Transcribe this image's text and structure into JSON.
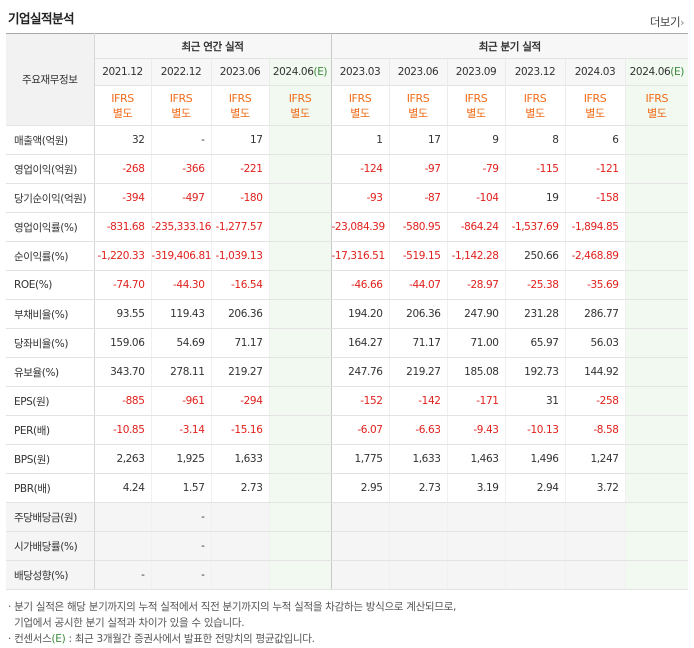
{
  "section_title": "기업실적분석",
  "more_label": "더보기",
  "more_icon": "chevron-right-icon",
  "row_header": "주요재무정보",
  "annual_group_label": "최근 연간 실적",
  "quarter_group_label": "최근 분기 실적",
  "annual_periods": [
    {
      "label": "2021.12",
      "suffix": "",
      "estimate": false
    },
    {
      "label": "2022.12",
      "suffix": "",
      "estimate": false
    },
    {
      "label": "2023.06",
      "suffix": "",
      "estimate": false
    },
    {
      "label": "2024.06",
      "suffix": "(E)",
      "estimate": true
    }
  ],
  "quarter_periods": [
    {
      "label": "2023.03",
      "suffix": "",
      "estimate": false
    },
    {
      "label": "2023.06",
      "suffix": "",
      "estimate": false
    },
    {
      "label": "2023.09",
      "suffix": "",
      "estimate": false
    },
    {
      "label": "2023.12",
      "suffix": "",
      "estimate": false
    },
    {
      "label": "2024.03",
      "suffix": "",
      "estimate": false
    },
    {
      "label": "2024.06",
      "suffix": "(E)",
      "estimate": true
    }
  ],
  "ifrs_line1": "IFRS",
  "ifrs_line2": "별도",
  "rows": [
    {
      "label": "매출액(억원)",
      "grey": false,
      "sep": false,
      "annual": [
        "32",
        "-",
        "17",
        ""
      ],
      "quarter": [
        "1",
        "17",
        "9",
        "8",
        "6",
        ""
      ]
    },
    {
      "label": "영업이익(억원)",
      "grey": false,
      "sep": false,
      "annual": [
        "-268",
        "-366",
        "-221",
        ""
      ],
      "quarter": [
        "-124",
        "-97",
        "-79",
        "-115",
        "-121",
        ""
      ]
    },
    {
      "label": "당기순이익(억원)",
      "grey": false,
      "sep": false,
      "annual": [
        "-394",
        "-497",
        "-180",
        ""
      ],
      "quarter": [
        "-93",
        "-87",
        "-104",
        "19",
        "-158",
        ""
      ]
    },
    {
      "label": "영업이익률(%)",
      "grey": false,
      "sep": true,
      "annual": [
        "-831.68",
        "-235,333.16",
        "-1,277.57",
        ""
      ],
      "quarter": [
        "-23,084.39",
        "-580.95",
        "-864.24",
        "-1,537.69",
        "-1,894.85",
        ""
      ]
    },
    {
      "label": "순이익률(%)",
      "grey": false,
      "sep": false,
      "annual": [
        "-1,220.33",
        "-319,406.81",
        "-1,039.13",
        ""
      ],
      "quarter": [
        "-17,316.51",
        "-519.15",
        "-1,142.28",
        "250.66",
        "-2,468.89",
        ""
      ]
    },
    {
      "label": "ROE(%)",
      "grey": false,
      "sep": false,
      "annual": [
        "-74.70",
        "-44.30",
        "-16.54",
        ""
      ],
      "quarter": [
        "-46.66",
        "-44.07",
        "-28.97",
        "-25.38",
        "-35.69",
        ""
      ]
    },
    {
      "label": "부채비율(%)",
      "grey": false,
      "sep": true,
      "annual": [
        "93.55",
        "119.43",
        "206.36",
        ""
      ],
      "quarter": [
        "194.20",
        "206.36",
        "247.90",
        "231.28",
        "286.77",
        ""
      ]
    },
    {
      "label": "당좌비율(%)",
      "grey": false,
      "sep": false,
      "annual": [
        "159.06",
        "54.69",
        "71.17",
        ""
      ],
      "quarter": [
        "164.27",
        "71.17",
        "71.00",
        "65.97",
        "56.03",
        ""
      ]
    },
    {
      "label": "유보율(%)",
      "grey": false,
      "sep": false,
      "annual": [
        "343.70",
        "278.11",
        "219.27",
        ""
      ],
      "quarter": [
        "247.76",
        "219.27",
        "185.08",
        "192.73",
        "144.92",
        ""
      ]
    },
    {
      "label": "EPS(원)",
      "grey": false,
      "sep": true,
      "annual": [
        "-885",
        "-961",
        "-294",
        ""
      ],
      "quarter": [
        "-152",
        "-142",
        "-171",
        "31",
        "-258",
        ""
      ]
    },
    {
      "label": "PER(배)",
      "grey": false,
      "sep": false,
      "annual": [
        "-10.85",
        "-3.14",
        "-15.16",
        ""
      ],
      "quarter": [
        "-6.07",
        "-6.63",
        "-9.43",
        "-10.13",
        "-8.58",
        ""
      ]
    },
    {
      "label": "BPS(원)",
      "grey": false,
      "sep": false,
      "annual": [
        "2,263",
        "1,925",
        "1,633",
        ""
      ],
      "quarter": [
        "1,775",
        "1,633",
        "1,463",
        "1,496",
        "1,247",
        ""
      ]
    },
    {
      "label": "PBR(배)",
      "grey": false,
      "sep": false,
      "annual": [
        "4.24",
        "1.57",
        "2.73",
        ""
      ],
      "quarter": [
        "2.95",
        "2.73",
        "3.19",
        "2.94",
        "3.72",
        ""
      ]
    },
    {
      "label": "주당배당금(원)",
      "grey": true,
      "sep": true,
      "annual": [
        "",
        "-",
        "",
        ""
      ],
      "quarter": [
        "",
        "",
        "",
        "",
        "",
        ""
      ]
    },
    {
      "label": "시가배당률(%)",
      "grey": true,
      "sep": false,
      "annual": [
        "",
        "-",
        "",
        ""
      ],
      "quarter": [
        "",
        "",
        "",
        "",
        "",
        ""
      ]
    },
    {
      "label": "배당성향(%)",
      "grey": true,
      "sep": false,
      "annual": [
        "-",
        "-",
        "",
        ""
      ],
      "quarter": [
        "",
        "",
        "",
        "",
        "",
        ""
      ]
    }
  ],
  "notes": {
    "line1": "· 분기 실적은 해당 분기까지의 누적 실적에서 직전 분기까지의 누적 실적을 차감하는 방식으로 계산되므로,",
    "line2": "  기업에서 공시한 분기 실적과 차이가 있을 수 있습니다.",
    "line3_prefix": "· 컨센서스",
    "line3_e": "(E)",
    "line3_suffix": " : 최근 3개월간 증권사에서 발표한 전망치의 평균값입니다."
  },
  "colors": {
    "negative": "#e0211d",
    "ifrs": "#f06c1a",
    "estimate_bg": "#f1f9f0",
    "estimate_text": "#3d8a3d"
  }
}
